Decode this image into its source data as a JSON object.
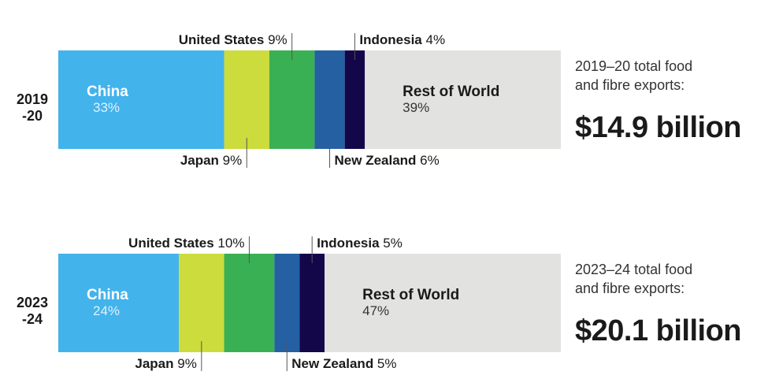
{
  "colors": {
    "China": "#43b3ec",
    "Japan": "#ccdc3c",
    "United States": "#3ab054",
    "New Zealand": "#2560a3",
    "Indonesia": "#13074a",
    "Rest of World": "#e2e3e1"
  },
  "chart_data": [
    {
      "type": "bar",
      "orientation": "horizontal-stacked-100",
      "category": "2019\n-20",
      "year_lines": [
        "2019",
        "-20"
      ],
      "segments": [
        {
          "name": "China",
          "value": 33,
          "label": "33%"
        },
        {
          "name": "Japan",
          "value": 9,
          "label": "9%"
        },
        {
          "name": "United States",
          "value": 9,
          "label": "9%"
        },
        {
          "name": "New Zealand",
          "value": 6,
          "label": "6%"
        },
        {
          "name": "Indonesia",
          "value": 4,
          "label": "4%"
        },
        {
          "name": "Rest of World",
          "value": 39,
          "label": "39%"
        }
      ],
      "total_text_lines": [
        "2019–20 total food",
        "and fibre exports:"
      ],
      "total_value": "$14.9 billion"
    },
    {
      "type": "bar",
      "orientation": "horizontal-stacked-100",
      "category": "2023\n-24",
      "year_lines": [
        "2023",
        "-24"
      ],
      "segments": [
        {
          "name": "China",
          "value": 24,
          "label": "24%"
        },
        {
          "name": "Japan",
          "value": 9,
          "label": "9%"
        },
        {
          "name": "United States",
          "value": 10,
          "label": "10%"
        },
        {
          "name": "New Zealand",
          "value": 5,
          "label": "5%"
        },
        {
          "name": "Indonesia",
          "value": 5,
          "label": "5%"
        },
        {
          "name": "Rest of World",
          "value": 47,
          "label": "47%"
        }
      ],
      "total_text_lines": [
        "2023–24 total food",
        "and fibre exports:"
      ],
      "total_value": "$20.1 billion"
    }
  ]
}
